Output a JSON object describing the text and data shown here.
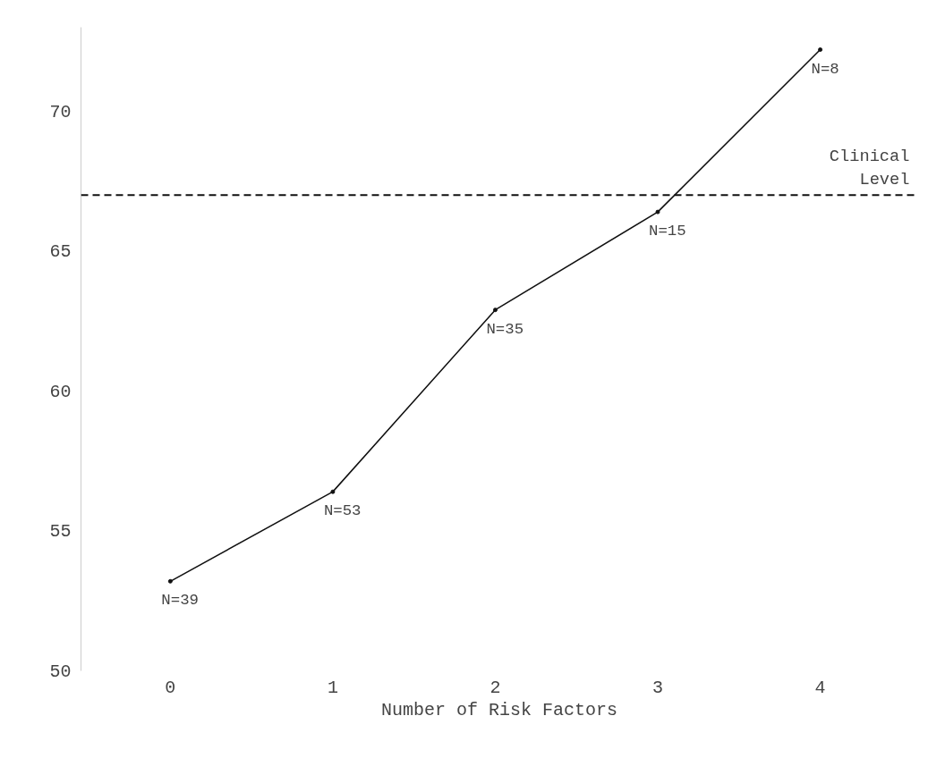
{
  "chart_data": {
    "type": "line",
    "xlabel": "Number of Risk Factors",
    "categories": [
      "0",
      "1",
      "2",
      "3",
      "4"
    ],
    "series": [
      {
        "color": "#111111",
        "values": [
          53.2,
          56.4,
          62.9,
          66.4,
          72.2
        ]
      }
    ],
    "ylim": [
      50,
      73
    ],
    "yticks": [
      50,
      55,
      60,
      65,
      70
    ],
    "grid": false,
    "marker": "circle",
    "line_style": "solid",
    "ref_lines": [
      {
        "axis": "y",
        "value": 67,
        "label": "Clinical\nLevel",
        "color": "#111111",
        "line_style": "dashed"
      }
    ],
    "annotations": [
      {
        "text": "N=39",
        "x": "0",
        "y": 53.2
      },
      {
        "text": "N=53",
        "x": "1",
        "y": 56.4
      },
      {
        "text": "N=35",
        "x": "2",
        "y": 62.9
      },
      {
        "text": "N=15",
        "x": "3",
        "y": 66.4
      },
      {
        "text": "N=8",
        "x": "4",
        "y": 72.2
      }
    ]
  }
}
